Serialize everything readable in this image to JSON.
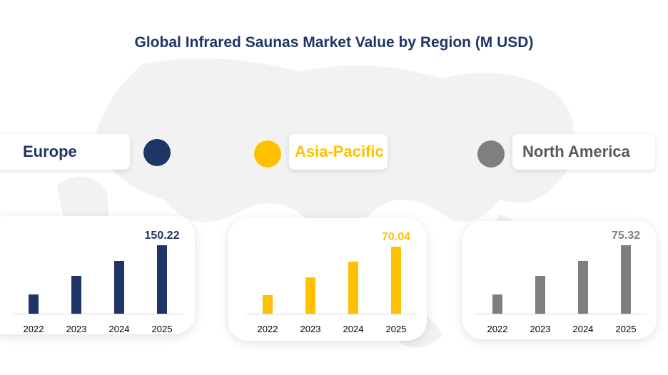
{
  "title": "Global Infrared Saunas Market Value by Region (M USD)",
  "chart_data": [
    {
      "type": "bar",
      "legend": "Europe",
      "color": "#1f3566",
      "categories": [
        "2022",
        "2023",
        "2024",
        "2025"
      ],
      "values": [
        42.2,
        82.9,
        115.8,
        150.22
      ],
      "data_labels": {
        "2025": "150.22"
      }
    },
    {
      "type": "bar",
      "legend": "Asia-Pacific",
      "color": "#ffc000",
      "categories": [
        "2022",
        "2023",
        "2024",
        "2025"
      ],
      "values": [
        19.4,
        38.0,
        54.4,
        70.04
      ],
      "data_labels": {
        "2025": "70.04"
      }
    },
    {
      "type": "bar",
      "legend": "North America",
      "color": "#7f7f7f",
      "categories": [
        "2022",
        "2023",
        "2024",
        "2025"
      ],
      "values": [
        21.2,
        41.6,
        58.1,
        75.32
      ],
      "data_labels": {
        "2025": "75.32"
      }
    }
  ]
}
